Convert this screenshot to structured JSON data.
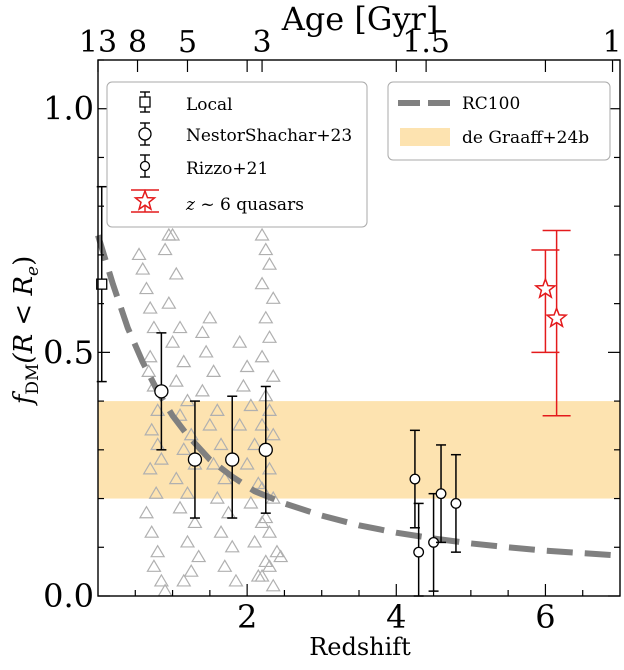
{
  "chart_data": {
    "type": "scatter",
    "xlabel": "Redshift",
    "ylabel_main": "f",
    "ylabel_sub": "DM",
    "ylabel_rest": "(R < R",
    "ylabel_sub2": "e",
    "ylabel_close": ")",
    "top_xlabel": "Age [Gyr]",
    "xlim": [
      0,
      7
    ],
    "ylim": [
      0,
      1.1
    ],
    "x_ticks": [
      2,
      4,
      6
    ],
    "x_tick_labels": [
      "2",
      "4",
      "6"
    ],
    "y_ticks": [
      0.0,
      0.5,
      1.0
    ],
    "y_tick_labels": [
      "0.0",
      "0.5",
      "1.0"
    ],
    "top_ticks": [
      {
        "label": "13",
        "z": 0.0
      },
      {
        "label": "8",
        "z": 0.53
      },
      {
        "label": "5",
        "z": 1.2
      },
      {
        "label": "3",
        "z": 2.2
      },
      {
        "label": "1.5",
        "z": 4.4
      },
      {
        "label": "1",
        "z": 6.9
      }
    ],
    "band": {
      "name": "de Graaff+24b",
      "ymin": 0.2,
      "ymax": 0.4,
      "color": "#fde3b0"
    },
    "rc100_curve": {
      "name": "RC100",
      "color": "#808080",
      "x": [
        0.0,
        0.2,
        0.4,
        0.6,
        0.8,
        1.0,
        1.2,
        1.5,
        1.8,
        2.1,
        2.5,
        3.0,
        3.5,
        4.0,
        4.5,
        5.0,
        5.5,
        6.0,
        6.5,
        7.0
      ],
      "y": [
        0.74,
        0.64,
        0.55,
        0.48,
        0.42,
        0.37,
        0.33,
        0.28,
        0.245,
        0.215,
        0.19,
        0.165,
        0.145,
        0.13,
        0.118,
        0.108,
        0.1,
        0.093,
        0.088,
        0.083
      ]
    },
    "local": {
      "name": "Local",
      "x": 0.05,
      "y": 0.64,
      "yerr_low": 0.44,
      "yerr_high": 0.84
    },
    "nestor": {
      "name": "NestorShachar+23",
      "points": [
        {
          "x": 0.85,
          "y": 0.42,
          "lo": 0.3,
          "hi": 0.54
        },
        {
          "x": 1.3,
          "y": 0.28,
          "lo": 0.16,
          "hi": 0.4
        },
        {
          "x": 1.8,
          "y": 0.28,
          "lo": 0.16,
          "hi": 0.41
        },
        {
          "x": 2.25,
          "y": 0.3,
          "lo": 0.17,
          "hi": 0.43
        }
      ]
    },
    "rizzo": {
      "name": "Rizzo+21",
      "points": [
        {
          "x": 4.25,
          "y": 0.24,
          "lo": 0.14,
          "hi": 0.34
        },
        {
          "x": 4.3,
          "y": 0.09,
          "lo": 0.0,
          "hi": 0.19
        },
        {
          "x": 4.5,
          "y": 0.11,
          "lo": 0.01,
          "hi": 0.21
        },
        {
          "x": 4.6,
          "y": 0.21,
          "lo": 0.11,
          "hi": 0.31
        },
        {
          "x": 4.8,
          "y": 0.19,
          "lo": 0.09,
          "hi": 0.29
        }
      ]
    },
    "quasars": {
      "name_prefix": "z",
      "name_suffix": " ~ 6 quasars",
      "color": "#e41a1c",
      "points": [
        {
          "x": 6.0,
          "y": 0.63,
          "lo": 0.5,
          "hi": 0.71
        },
        {
          "x": 6.15,
          "y": 0.57,
          "lo": 0.37,
          "hi": 0.75
        }
      ]
    },
    "triangles": {
      "color": "#b0b0b0",
      "points": [
        [
          0.55,
          0.7
        ],
        [
          0.6,
          0.67
        ],
        [
          0.65,
          0.63
        ],
        [
          0.7,
          0.59
        ],
        [
          0.75,
          0.55
        ],
        [
          0.7,
          0.49
        ],
        [
          0.68,
          0.46
        ],
        [
          0.75,
          0.43
        ],
        [
          0.8,
          0.38
        ],
        [
          0.72,
          0.34
        ],
        [
          0.8,
          0.31
        ],
        [
          0.85,
          0.28
        ],
        [
          0.7,
          0.26
        ],
        [
          0.78,
          0.21
        ],
        [
          0.65,
          0.17
        ],
        [
          0.72,
          0.13
        ],
        [
          0.8,
          0.09
        ],
        [
          0.75,
          0.06
        ],
        [
          0.85,
          0.03
        ],
        [
          0.9,
          0.01
        ],
        [
          0.9,
          0.71
        ],
        [
          0.95,
          0.74
        ],
        [
          1.0,
          0.74
        ],
        [
          1.05,
          0.66
        ],
        [
          0.95,
          0.6
        ],
        [
          1.1,
          0.55
        ],
        [
          1.0,
          0.52
        ],
        [
          1.15,
          0.48
        ],
        [
          1.05,
          0.44
        ],
        [
          1.2,
          0.4
        ],
        [
          1.1,
          0.37
        ],
        [
          1.25,
          0.33
        ],
        [
          1.15,
          0.3
        ],
        [
          1.3,
          0.27
        ],
        [
          1.05,
          0.24
        ],
        [
          1.2,
          0.21
        ],
        [
          1.1,
          0.18
        ],
        [
          1.3,
          0.15
        ],
        [
          1.2,
          0.11
        ],
        [
          1.35,
          0.08
        ],
        [
          1.25,
          0.05
        ],
        [
          1.15,
          0.03
        ],
        [
          1.4,
          0.54
        ],
        [
          1.5,
          0.57
        ],
        [
          1.45,
          0.5
        ],
        [
          1.55,
          0.46
        ],
        [
          1.4,
          0.42
        ],
        [
          1.6,
          0.38
        ],
        [
          1.5,
          0.35
        ],
        [
          1.65,
          0.31
        ],
        [
          1.55,
          0.27
        ],
        [
          1.7,
          0.24
        ],
        [
          1.6,
          0.2
        ],
        [
          1.75,
          0.17
        ],
        [
          1.65,
          0.13
        ],
        [
          1.8,
          0.1
        ],
        [
          1.7,
          0.06
        ],
        [
          1.85,
          0.03
        ],
        [
          1.9,
          0.52
        ],
        [
          2.0,
          0.47
        ],
        [
          1.95,
          0.43
        ],
        [
          2.05,
          0.39
        ],
        [
          1.9,
          0.35
        ],
        [
          2.1,
          0.31
        ],
        [
          2.0,
          0.27
        ],
        [
          2.15,
          0.23
        ],
        [
          2.05,
          0.19
        ],
        [
          2.2,
          0.15
        ],
        [
          2.1,
          0.11
        ],
        [
          2.25,
          0.07
        ],
        [
          2.15,
          0.04
        ],
        [
          2.2,
          0.74
        ],
        [
          2.25,
          0.71
        ],
        [
          2.3,
          0.68
        ],
        [
          2.2,
          0.64
        ],
        [
          2.35,
          0.61
        ],
        [
          2.25,
          0.57
        ],
        [
          2.3,
          0.53
        ],
        [
          2.2,
          0.49
        ],
        [
          2.35,
          0.45
        ],
        [
          2.25,
          0.41
        ],
        [
          2.3,
          0.38
        ],
        [
          2.2,
          0.35
        ],
        [
          2.35,
          0.33
        ],
        [
          2.3,
          0.26
        ],
        [
          2.2,
          0.22
        ],
        [
          2.35,
          0.2
        ],
        [
          2.25,
          0.16
        ],
        [
          2.3,
          0.13
        ],
        [
          2.4,
          0.09
        ],
        [
          2.45,
          0.08
        ],
        [
          2.3,
          0.06
        ],
        [
          2.2,
          0.04
        ],
        [
          2.35,
          0.02
        ]
      ]
    }
  }
}
